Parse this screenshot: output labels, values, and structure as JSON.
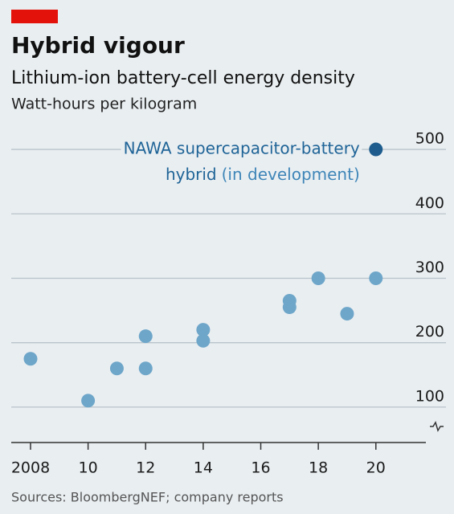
{
  "chart_data": {
    "type": "scatter",
    "title": "Hybrid vigour",
    "subtitle": "Lithium-ion battery-cell energy density",
    "y_label": "Watt-hours per kilogram",
    "source": "Sources: BloombergNEF; company reports",
    "annotation": [
      "NAWA supercapacitor-battery",
      "hybrid",
      "(in development)"
    ],
    "series": [
      {
        "color": "#6ea6c9",
        "x": [
          2008,
          2010,
          2011,
          2012,
          2012,
          2014,
          2014,
          2017,
          2017,
          2018,
          2019,
          2020
        ],
        "values": [
          175,
          110,
          160,
          210,
          160,
          220,
          203,
          265,
          255,
          300,
          245,
          300
        ]
      },
      {
        "color": "#1d5c8d",
        "x": [
          2020
        ],
        "values": [
          500
        ]
      }
    ],
    "xlim": [
      2007.33,
      2020.9
    ],
    "xticks": [
      2008,
      {
        "value": 2010,
        "label": "10"
      },
      {
        "value": 2012,
        "label": "12"
      },
      {
        "value": 2014,
        "label": "14"
      },
      {
        "value": 2016,
        "label": "16"
      },
      {
        "value": 2018,
        "label": "18"
      },
      {
        "value": 2020,
        "label": "20"
      }
    ],
    "ylim": [
      45,
      520
    ],
    "yticks": [
      100,
      200,
      300,
      400,
      500
    ],
    "grid": true
  }
}
